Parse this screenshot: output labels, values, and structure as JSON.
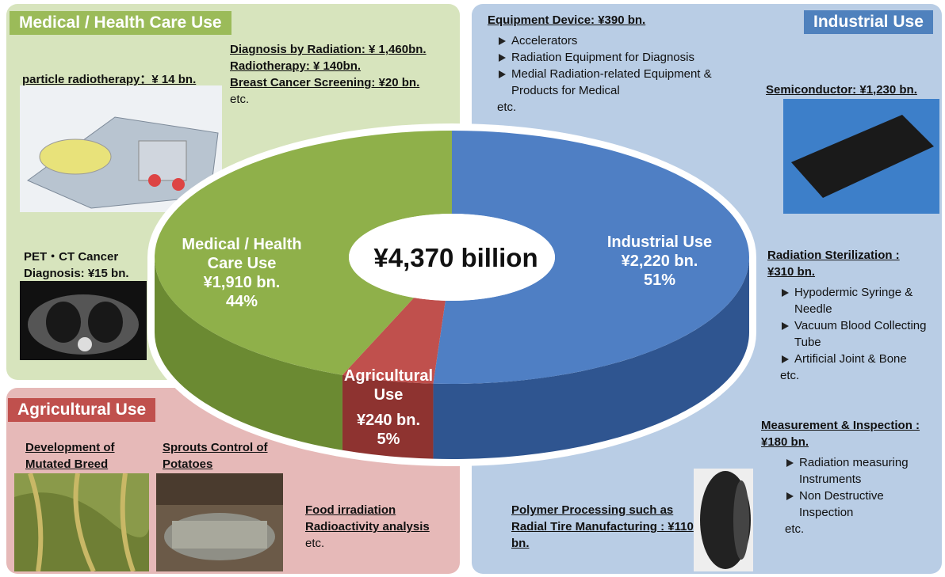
{
  "chart_data": {
    "type": "pie",
    "title": "¥4,370 billion",
    "categories": [
      "Industrial Use",
      "Agricultural Use",
      "Medical / Health Care Use"
    ],
    "amounts": [
      "¥2,220 bn.",
      "¥240 bn.",
      "¥1,910 bn."
    ],
    "values": [
      51,
      5,
      44
    ],
    "value_labels": [
      "51%",
      "5%",
      "44%"
    ],
    "colors": [
      "#4f7fc4",
      "#c0504d",
      "#8fb04a"
    ],
    "side_colors": [
      "#2f5590",
      "#8e3330",
      "#6b8a32"
    ]
  },
  "medical": {
    "heading": "Medical / Health Care Use",
    "particle": "particle radiotherapy：¥ 14 bn.",
    "diagnosis": [
      "Diagnosis by Radiation: ¥ 1,460bn.",
      "Radiotherapy: ¥ 140bn.",
      "Breast Cancer Screening: ¥20 bn."
    ],
    "etc": "etc.",
    "pet": "PET・CT Cancer Diagnosis: ¥15 bn."
  },
  "agricultural": {
    "heading": "Agricultural Use",
    "breed": "Development of Mutated Breed",
    "sprouts": "Sprouts Control of Potatoes",
    "food": [
      "Food irradiation",
      "Radioactivity analysis"
    ],
    "etc": "etc."
  },
  "industrial": {
    "heading": "Industrial Use",
    "equipment": {
      "title": "Equipment Device: ¥390 bn.",
      "items": [
        "Accelerators",
        "Radiation Equipment for Diagnosis",
        "Medial Radiation-related Equipment & Products for Medical"
      ],
      "etc": "etc."
    },
    "semiconductor": "Semiconductor: ¥1,230 bn.",
    "sterilization": {
      "title": "Radiation Sterilization : ¥310 bn.",
      "items": [
        "Hypodermic Syringe & Needle",
        "Vacuum Blood Collecting Tube",
        "Artificial Joint & Bone"
      ],
      "etc": "etc."
    },
    "measurement": {
      "title": "Measurement & Inspection : ¥180 bn.",
      "items": [
        "Radiation measuring Instruments",
        "Non Destructive Inspection"
      ],
      "etc": "etc."
    },
    "polymer": "Polymer Processing such as Radial Tire Manufacturing : ¥110 bn."
  }
}
